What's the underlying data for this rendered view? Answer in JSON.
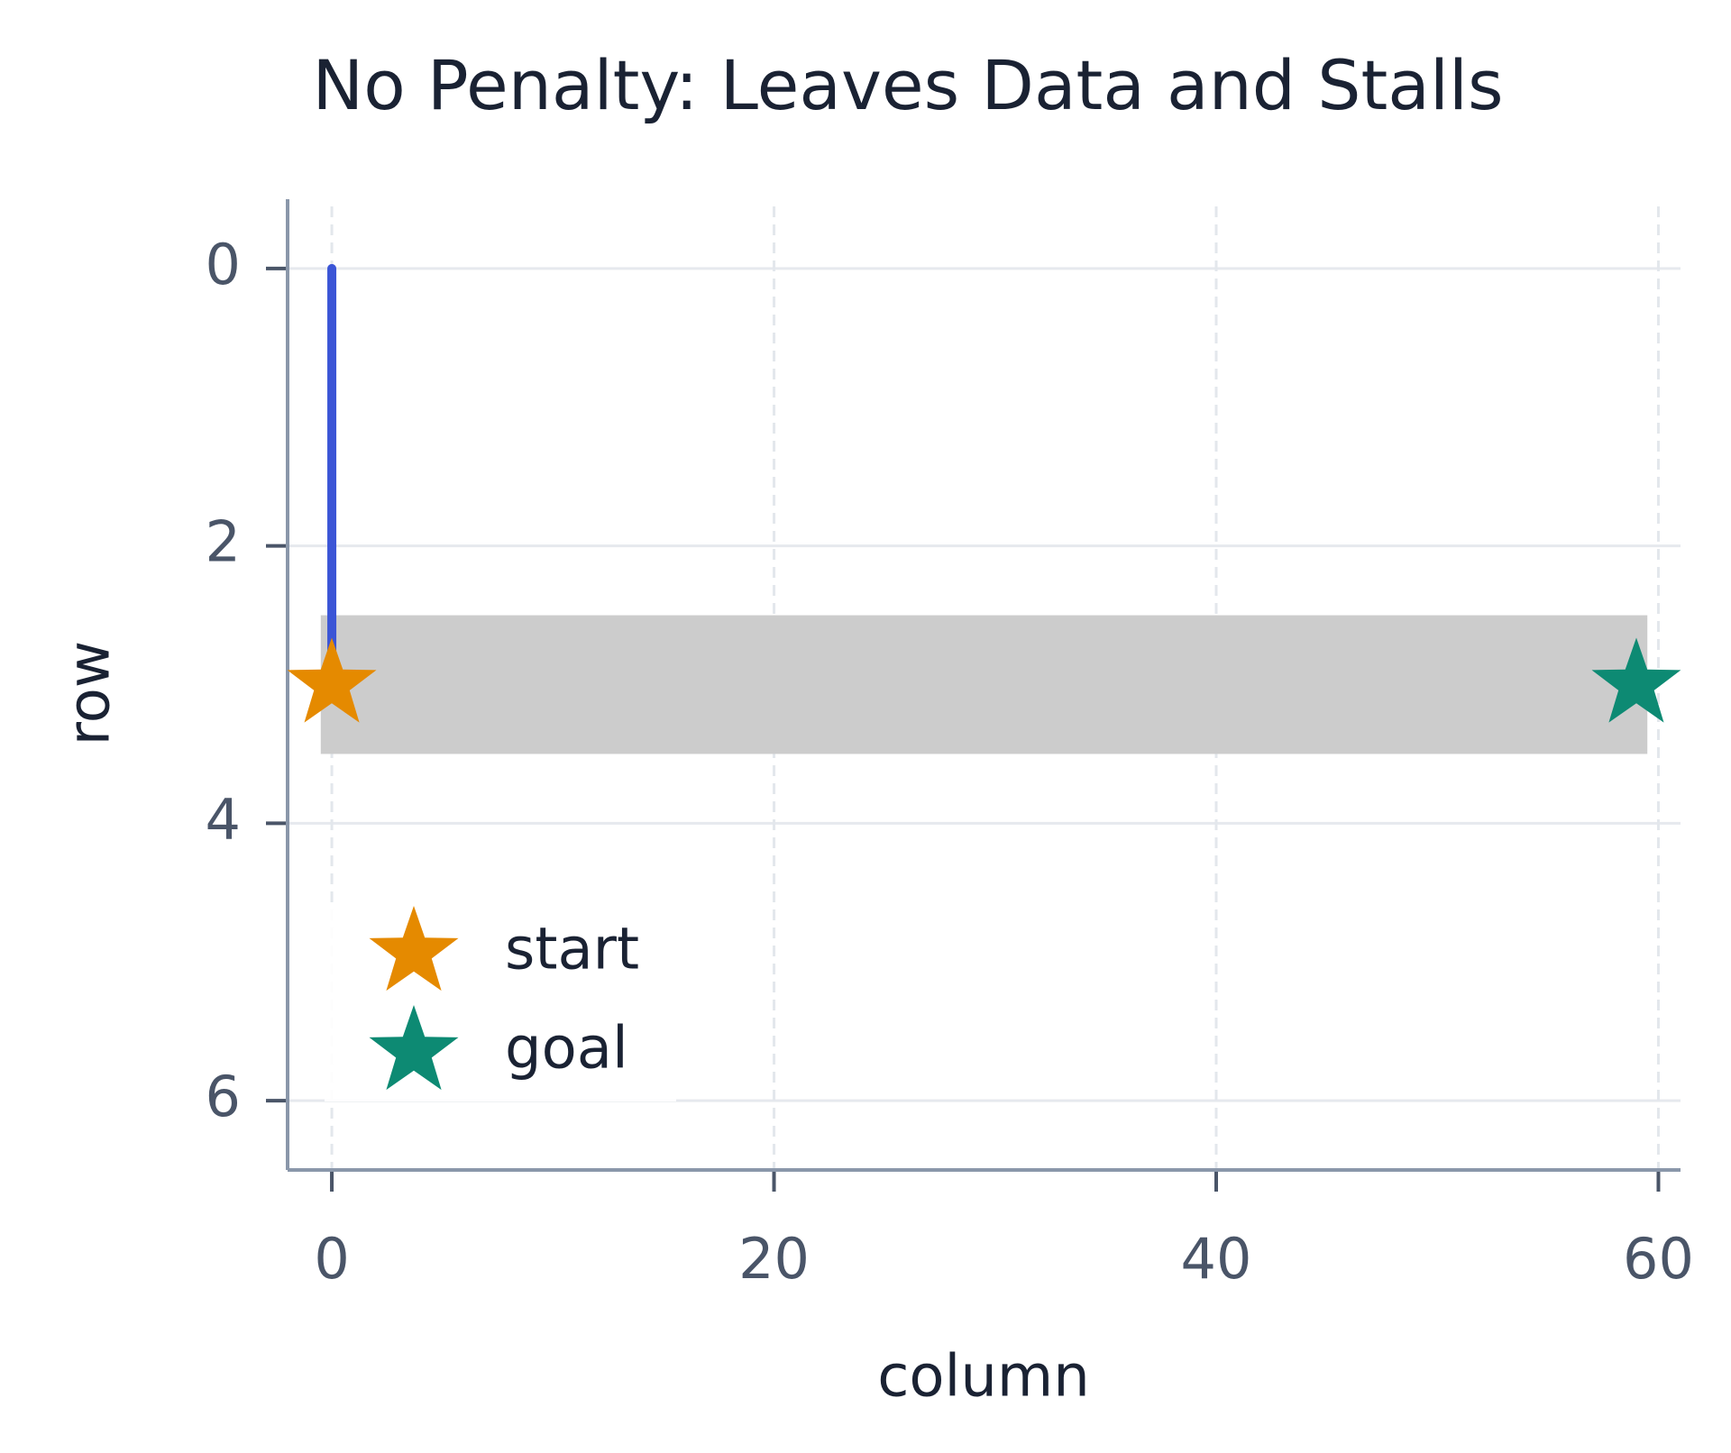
{
  "chart_data": {
    "type": "line",
    "title": "No Penalty: Leaves Data and Stalls",
    "x_label": "column",
    "y_label": "row",
    "xlim": [
      -2,
      61
    ],
    "ylim": [
      6.5,
      -0.5
    ],
    "xticks": [
      0,
      20,
      40,
      60
    ],
    "yticks": [
      0,
      2,
      4,
      6
    ],
    "grid": true,
    "legend": "lower left",
    "band": {
      "x": [
        0,
        59
      ],
      "y": 3,
      "color": "#cccccc"
    },
    "series": [
      {
        "x": [
          0,
          0
        ],
        "values": [
          3,
          0
        ],
        "color": "#3b55d6"
      },
      {
        "name": "start",
        "marker": "star",
        "x": [
          0
        ],
        "values": [
          3
        ],
        "color": "#e58a00"
      },
      {
        "name": "goal",
        "marker": "star",
        "x": [
          59
        ],
        "values": [
          3
        ],
        "color": "#0d8a73"
      }
    ]
  }
}
